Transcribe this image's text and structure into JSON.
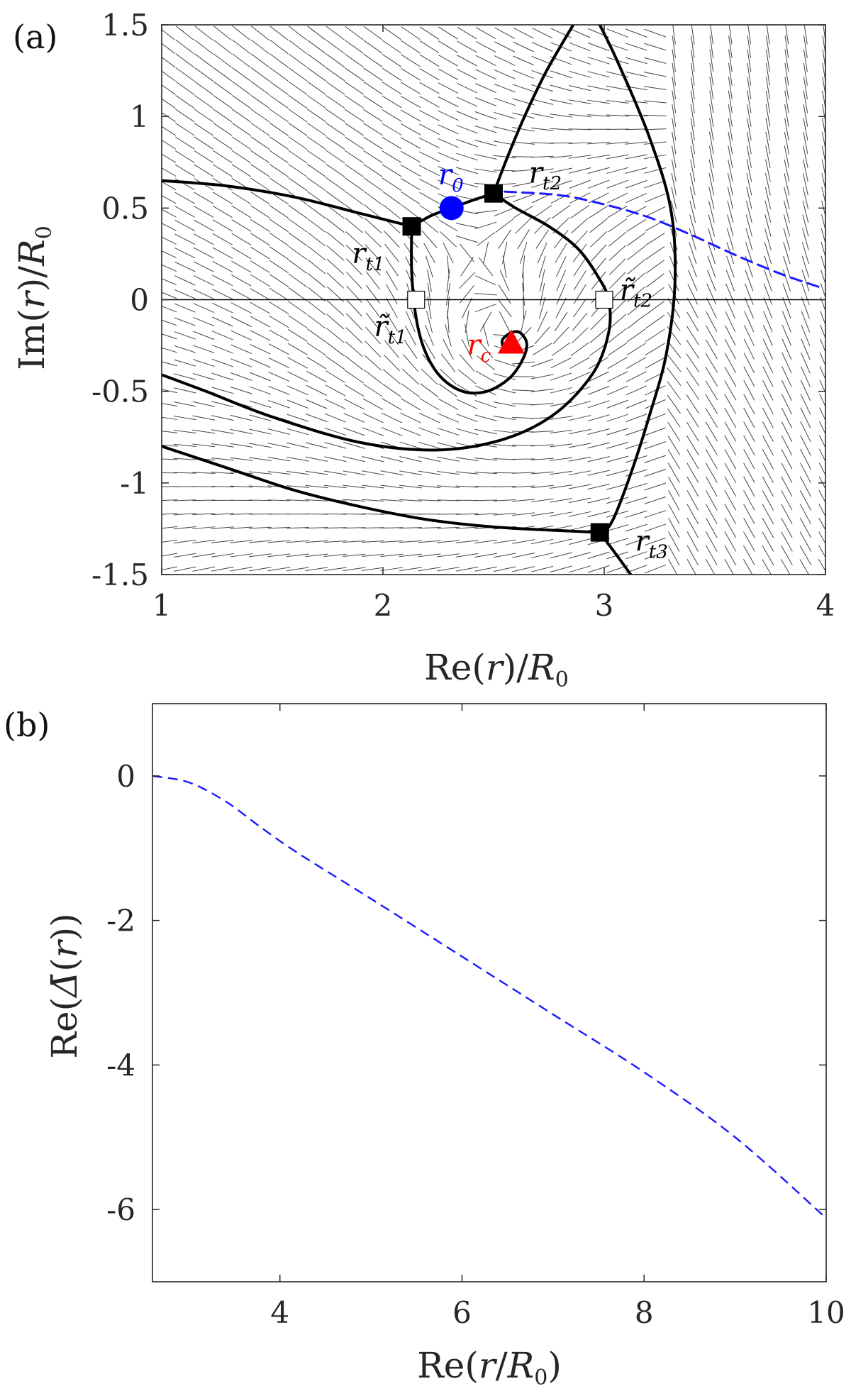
{
  "chart_data": [
    {
      "panel": "(a)",
      "type": "line",
      "xlabel": "Re(r)/R0",
      "ylabel": "Im(r)/R0",
      "xlim": [
        1,
        4
      ],
      "ylim": [
        -1.5,
        1.5
      ],
      "xticks": [
        "1",
        "2",
        "3",
        "4"
      ],
      "yticks": [
        "1.5",
        "1",
        "0.5",
        "0",
        "-0.5",
        "-1",
        "-1.5"
      ],
      "xtick_values": [
        1,
        2,
        3,
        4
      ],
      "ytick_values": [
        1.5,
        1,
        0.5,
        0,
        -0.5,
        -1,
        -1.5
      ],
      "background": "direction field of short line segments",
      "curves": [
        {
          "name": "upper-left boundary",
          "style": "solid",
          "color": "#000000",
          "x": [
            1.0,
            1.3,
            1.6,
            1.9,
            2.13
          ],
          "y": [
            0.65,
            0.62,
            0.56,
            0.47,
            0.4
          ]
        },
        {
          "name": "r_t1 to r0 to r_t2",
          "style": "solid",
          "color": "#000000",
          "x": [
            2.13,
            2.22,
            2.31,
            2.4,
            2.5
          ],
          "y": [
            0.4,
            0.46,
            0.5,
            0.54,
            0.58
          ]
        },
        {
          "name": "r_t1 descending spiral",
          "style": "solid",
          "color": "#000000",
          "x": [
            2.13,
            2.13,
            2.15,
            2.19,
            2.26,
            2.36,
            2.47,
            2.57,
            2.63,
            2.65,
            2.62,
            2.58,
            2.54,
            2.55,
            2.58
          ],
          "y": [
            0.4,
            0.15,
            -0.1,
            -0.28,
            -0.42,
            -0.5,
            -0.5,
            -0.43,
            -0.33,
            -0.24,
            -0.18,
            -0.18,
            -0.22,
            -0.27,
            -0.25
          ]
        },
        {
          "name": "r_t2 upward branch",
          "style": "solid",
          "color": "#000000",
          "x": [
            2.5,
            2.56,
            2.64,
            2.74,
            2.86
          ],
          "y": [
            0.58,
            0.77,
            1.0,
            1.25,
            1.5
          ]
        },
        {
          "name": "r_t2 loop",
          "style": "solid",
          "color": "#000000",
          "x": [
            2.5,
            2.6,
            2.75,
            2.88,
            2.97,
            3.02,
            3.02,
            2.95,
            2.78,
            2.55,
            2.25,
            1.9,
            1.5,
            1.2,
            1.0
          ],
          "y": [
            0.58,
            0.5,
            0.4,
            0.28,
            0.13,
            0.0,
            -0.18,
            -0.4,
            -0.62,
            -0.76,
            -0.82,
            -0.78,
            -0.64,
            -0.5,
            -0.41
          ]
        },
        {
          "name": "vertical separatrix",
          "style": "solid",
          "color": "#000000",
          "x": [
            2.98,
            3.06,
            3.2,
            3.3,
            3.32,
            3.28,
            3.2,
            3.12,
            3.04,
            2.98
          ],
          "y": [
            1.5,
            1.3,
            0.9,
            0.5,
            0.1,
            -0.3,
            -0.65,
            -0.95,
            -1.2,
            -1.3
          ]
        },
        {
          "name": "lower boundary",
          "style": "solid",
          "color": "#000000",
          "x": [
            1.0,
            1.3,
            1.6,
            1.9,
            2.2,
            2.5,
            2.8,
            2.98
          ],
          "y": [
            -0.8,
            -0.92,
            -1.04,
            -1.13,
            -1.2,
            -1.24,
            -1.26,
            -1.27
          ]
        },
        {
          "name": "r_t3 lower branch",
          "style": "solid",
          "color": "#000000",
          "x": [
            2.98,
            3.06,
            3.12
          ],
          "y": [
            -1.27,
            -1.4,
            -1.5
          ]
        },
        {
          "name": "integration path",
          "style": "dashed",
          "color": "#1a1aff",
          "x": [
            2.55,
            2.8,
            3.0,
            3.2,
            3.4,
            3.6,
            3.8,
            3.97
          ],
          "y": [
            0.59,
            0.57,
            0.52,
            0.45,
            0.35,
            0.24,
            0.14,
            0.07
          ]
        }
      ],
      "zero_line": {
        "y": 0
      },
      "points": [
        {
          "label": "r_t1",
          "x": 2.13,
          "y": 0.4,
          "marker": "filled-square",
          "color": "#000000"
        },
        {
          "label": "r_t2",
          "x": 2.5,
          "y": 0.58,
          "marker": "filled-square",
          "color": "#000000"
        },
        {
          "label": "r_t3",
          "x": 2.98,
          "y": -1.27,
          "marker": "filled-square",
          "color": "#000000"
        },
        {
          "label": "r̃_t1",
          "x": 2.15,
          "y": 0.0,
          "marker": "open-square",
          "color": "#000000"
        },
        {
          "label": "r̃_t2",
          "x": 3.0,
          "y": 0.0,
          "marker": "open-square",
          "color": "#000000"
        },
        {
          "label": "r0",
          "x": 2.31,
          "y": 0.5,
          "marker": "circle",
          "color": "#0000ff"
        },
        {
          "label": "r_c",
          "x": 2.58,
          "y": -0.24,
          "marker": "triangle",
          "color": "#ff0000"
        }
      ],
      "annotations": [
        {
          "text": "r",
          "sub": "0",
          "tilde": false,
          "color": "#0000ff",
          "x": 2.25,
          "y": 0.63
        },
        {
          "text": "r",
          "sub": "t2",
          "tilde": false,
          "color": "#000000",
          "x": 2.66,
          "y": 0.64
        },
        {
          "text": "r",
          "sub": "t1",
          "tilde": false,
          "color": "#000000",
          "x": 1.86,
          "y": 0.2
        },
        {
          "text": "r",
          "sub": "t2",
          "tilde": true,
          "color": "#000000",
          "x": 3.07,
          "y": 0.0
        },
        {
          "text": "r",
          "sub": "t1",
          "tilde": true,
          "color": "#000000",
          "x": 1.96,
          "y": -0.2
        },
        {
          "text": "r",
          "sub": "c",
          "tilde": false,
          "color": "#ff0000",
          "x": 2.38,
          "y": -0.3
        },
        {
          "text": "r",
          "sub": "t3",
          "tilde": false,
          "color": "#000000",
          "x": 3.14,
          "y": -1.37
        }
      ]
    },
    {
      "panel": "(b)",
      "type": "line",
      "xlabel": "Re(r/R0)",
      "ylabel": "Re(Δ̄(r))",
      "xlim": [
        2.6,
        10
      ],
      "ylim": [
        -7,
        1
      ],
      "xticks": [
        "4",
        "6",
        "8",
        "10"
      ],
      "yticks": [
        "0",
        "-2",
        "-4",
        "-6"
      ],
      "xtick_values": [
        4,
        6,
        8,
        10
      ],
      "ytick_values": [
        0,
        -2,
        -4,
        -6
      ],
      "series": [
        {
          "name": "Re(Δ̄(r))",
          "style": "dashed",
          "color": "#1a1aff",
          "x": [
            2.6,
            3.0,
            3.4,
            3.8,
            4.2,
            5.0,
            6.0,
            7.0,
            8.0,
            9.0,
            10.0
          ],
          "y": [
            0.0,
            -0.09,
            -0.35,
            -0.72,
            -1.07,
            -1.7,
            -2.5,
            -3.3,
            -4.1,
            -5.0,
            -6.12
          ]
        }
      ]
    }
  ]
}
